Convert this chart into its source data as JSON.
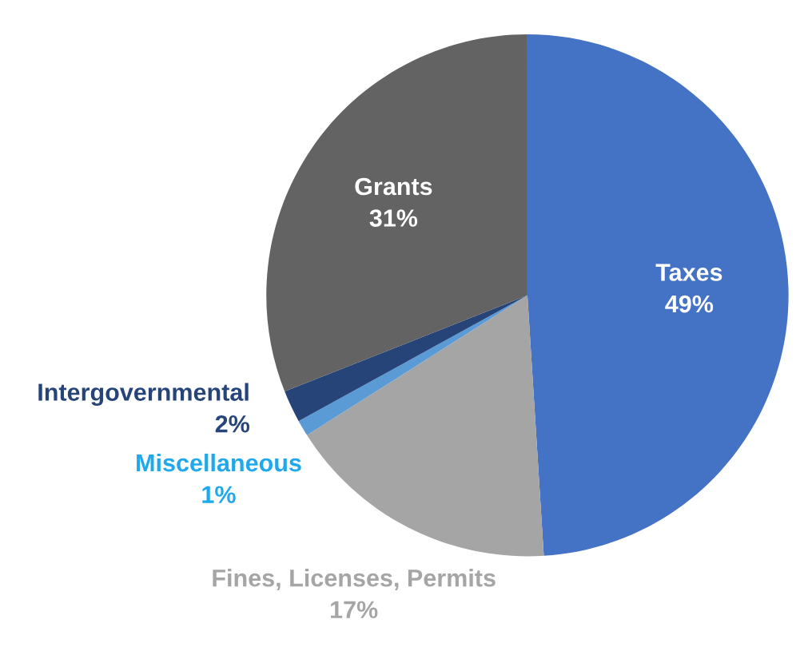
{
  "chart_data": {
    "type": "pie",
    "categories": [
      "Taxes",
      "Fines, Licenses, Permits",
      "Miscellaneous",
      "Intergovernmental",
      "Grants"
    ],
    "values": [
      49,
      17,
      1,
      2,
      31
    ],
    "colors": [
      "#4472c4",
      "#a5a5a5",
      "#5b9bd5",
      "#264478",
      "#636363"
    ],
    "value_labels": [
      "49%",
      "17%",
      "1%",
      "2%",
      "31%"
    ]
  }
}
